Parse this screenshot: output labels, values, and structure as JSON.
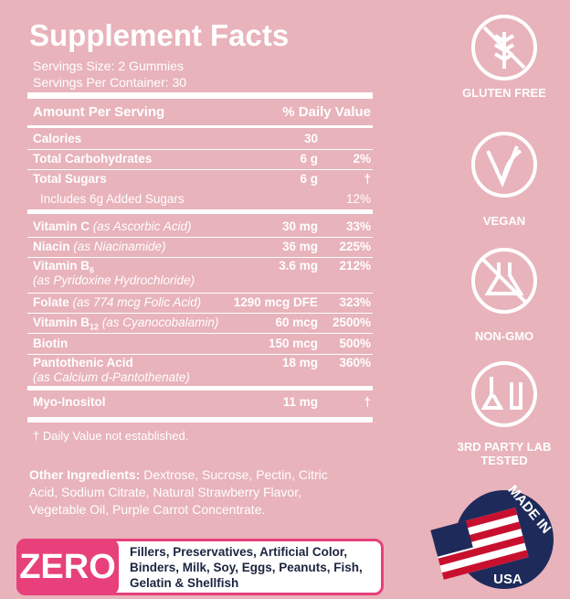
{
  "facts": {
    "title": "Supplement Facts",
    "serving_size": "Servings Size: 2 Gummies",
    "servings_per_container": "Servings Per Container: 30",
    "header": {
      "amount": "Amount Per Serving",
      "dv": "% Daily Value"
    },
    "rows": [
      {
        "name": "Calories",
        "amount": "30"
      },
      {
        "name": "Total Carbohydrates",
        "amount": "6 g",
        "dv": "2%"
      },
      {
        "name": "Total Sugars",
        "amount": "6 g",
        "dv": "†"
      },
      {
        "name": "Includes 6g Added Sugars",
        "dv": "12%"
      },
      {
        "name": "Vitamin C",
        "detail": "(as Ascorbic Acid)",
        "amount": "30 mg",
        "dv": "33%"
      },
      {
        "name": "Niacin",
        "detail": "(as Niacinamide)",
        "amount": "36 mg",
        "dv": "225%"
      },
      {
        "name": "Vitamin B",
        "sub": "6",
        "note": "(as Pyridoxine Hydrochloride)",
        "amount": "3.6 mg",
        "dv": "212%"
      },
      {
        "name": "Folate",
        "detail": "(as 774 mcg Folic Acid)",
        "amount": "1290 mcg DFE",
        "dv": "323%"
      },
      {
        "name": "Vitamin B",
        "sub": "12",
        "detail": "(as Cyanocobalamin)",
        "amount": "60 mcg",
        "dv": "2500%"
      },
      {
        "name": "Biotin",
        "amount": "150 mcg",
        "dv": "500%"
      },
      {
        "name": "Pantothenic Acid",
        "note": "(as Calcium d-Pantothenate)",
        "amount": "18 mg",
        "dv": "360%"
      },
      {
        "name": "Myo-Inositol",
        "amount": "11 mg",
        "dv": "†"
      }
    ],
    "footnote": "† Daily Value not established.",
    "other_label": "Other Ingredients:",
    "other_text": "Dextrose, Sucrose, Pectin, Citric Acid, Sodium Citrate, Natural Strawberry Flavor, Vegetable Oil, Purple Carrot Concentrate."
  },
  "zero": {
    "label": "ZERO",
    "text": "Fillers, Preservatives, Artificial Color, Binders, Milk, Soy, Eggs, Peanuts, Fish, Gelatin & Shellfish"
  },
  "badges": [
    "GLUTEN FREE",
    "VEGAN",
    "NON-GMO",
    "3RD PARTY LAB TESTED"
  ],
  "usa": {
    "top": "MADE IN",
    "bottom": "USA"
  }
}
